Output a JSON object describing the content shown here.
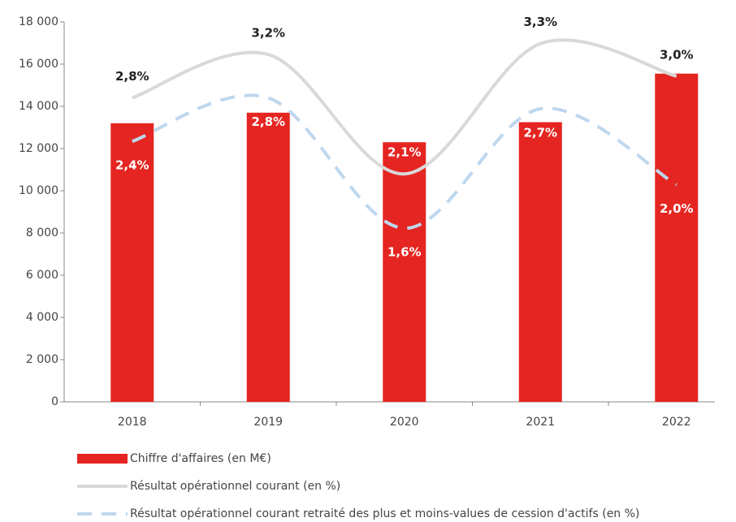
{
  "chart_data": {
    "type": "bar",
    "categories": [
      "2018",
      "2019",
      "2020",
      "2021",
      "2022"
    ],
    "series": [
      {
        "name": "Chiffre d'affaires (en M€)",
        "type": "bar",
        "color": "#e52521",
        "values": [
          13200,
          13700,
          12300,
          13250,
          15550
        ]
      },
      {
        "name": "Résultat opérationnel courant (en %)",
        "type": "line",
        "axis": "y2",
        "color": "#d9d9d9",
        "values": [
          2.8,
          3.2,
          2.1,
          3.3,
          3.0
        ],
        "value_labels": [
          "2,8%",
          "3,2%",
          "2,1%",
          "3,3%",
          "3,0%"
        ]
      },
      {
        "name": "Résultat opérationnel courant retraité des plus et moins-values de cession d'actifs (en %)",
        "type": "line",
        "dashed": true,
        "axis": "y2",
        "color": "#bdd7ee",
        "values": [
          2.4,
          2.8,
          1.6,
          2.7,
          2.0
        ],
        "value_labels": [
          "2,4%",
          "2,8%",
          "1,6%",
          "2,7%",
          "2,0%"
        ]
      }
    ],
    "ylim": [
      0,
      18000
    ],
    "yticks": [
      0,
      {
        "value": 2000,
        "label": "2 000"
      },
      {
        "value": 4000,
        "label": "4 000"
      },
      {
        "value": 6000,
        "label": "6 000"
      },
      {
        "value": 8000,
        "label": "8 000"
      },
      {
        "value": 10000,
        "label": "10 000"
      },
      {
        "value": 12000,
        "label": "12 000"
      },
      {
        "value": 14000,
        "label": "14 000"
      },
      {
        "value": 16000,
        "label": "16 000"
      },
      {
        "value": 18000,
        "label": "18 000"
      }
    ],
    "y2lim": [
      0,
      3.5
    ],
    "legend": "bottom"
  }
}
